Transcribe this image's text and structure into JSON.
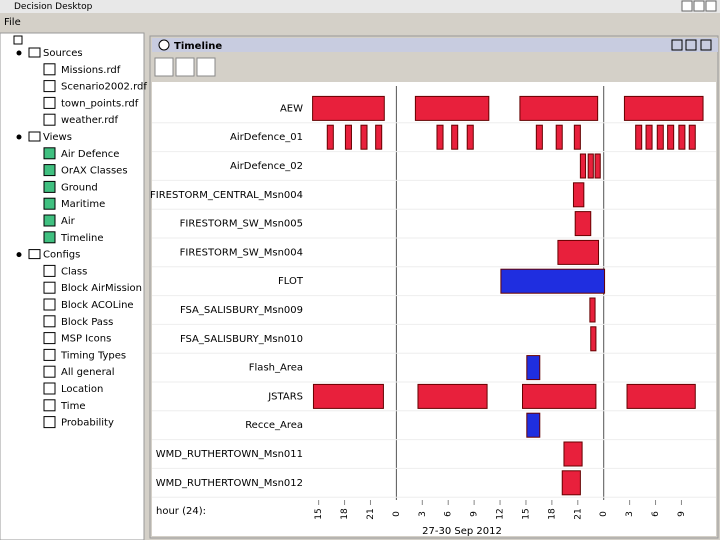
{
  "window": {
    "title": "Decision Desktop"
  },
  "menu": [
    "File"
  ],
  "tree": [
    {
      "label": "Sources",
      "children": [
        "Missions.rdf",
        "Scenario2002.rdf",
        "town_points.rdf",
        "weather.rdf"
      ]
    },
    {
      "label": "Views",
      "children": [
        "Air Defence",
        "OrAX Classes",
        "Ground",
        "Maritime",
        "Air",
        "Timeline"
      ]
    },
    {
      "label": "Configs",
      "children": [
        "Class",
        "Block AirMission",
        "Block ACOLine",
        "Block Pass",
        "MSP Icons",
        "Timing Types",
        "All general",
        "Location",
        "Time",
        "Probability"
      ]
    }
  ],
  "panel": {
    "title": "Timeline"
  },
  "chart_data": {
    "type": "timeline",
    "xlabel": "hour (24):",
    "date_label": "27-30 Sep 2012",
    "xlim": [
      14,
      61
    ],
    "xticks": [
      {
        "value": 15,
        "label": "15"
      },
      {
        "value": 18,
        "label": "18"
      },
      {
        "value": 21,
        "label": "21"
      },
      {
        "value": 24,
        "label": "0"
      },
      {
        "value": 27,
        "label": "3"
      },
      {
        "value": 30,
        "label": "6"
      },
      {
        "value": 33,
        "label": "9"
      },
      {
        "value": 36,
        "label": "12"
      },
      {
        "value": 39,
        "label": "15"
      },
      {
        "value": 42,
        "label": "18"
      },
      {
        "value": 45,
        "label": "21"
      },
      {
        "value": 48,
        "label": "0"
      },
      {
        "value": 51,
        "label": "3"
      },
      {
        "value": 54,
        "label": "6"
      },
      {
        "value": 57,
        "label": "9"
      }
    ],
    "series": [
      {
        "name": "AEW",
        "color": "#e8203c",
        "values": [
          [
            14.3,
            22.6
          ],
          [
            26.2,
            34.7
          ],
          [
            38.3,
            47.3
          ],
          [
            50.4,
            59.5
          ]
        ]
      },
      {
        "name": "AirDefence_01",
        "color": "#e8203c",
        "values": [
          [
            16.0,
            16.7
          ],
          [
            18.1,
            18.8
          ],
          [
            19.9,
            20.6
          ],
          [
            21.6,
            22.3
          ],
          [
            28.7,
            29.4
          ],
          [
            30.4,
            31.1
          ],
          [
            32.2,
            32.9
          ],
          [
            40.2,
            40.9
          ],
          [
            42.5,
            43.2
          ],
          [
            44.6,
            45.3
          ],
          [
            51.7,
            52.4
          ],
          [
            52.9,
            53.6
          ],
          [
            54.2,
            54.9
          ],
          [
            55.4,
            56.1
          ],
          [
            56.7,
            57.4
          ],
          [
            57.9,
            58.6
          ]
        ]
      },
      {
        "name": "AirDefence_02",
        "color": "#e8203c",
        "values": [
          [
            45.3,
            45.9
          ],
          [
            46.2,
            46.8
          ],
          [
            47.0,
            47.6
          ]
        ]
      },
      {
        "name": "FIRESTORM_CENTRAL_Msn004",
        "color": "#e8203c",
        "values": [
          [
            44.5,
            45.7
          ]
        ]
      },
      {
        "name": "FIRESTORM_SW_Msn005",
        "color": "#e8203c",
        "values": [
          [
            44.7,
            46.5
          ]
        ]
      },
      {
        "name": "FIRESTORM_SW_Msn004",
        "color": "#e8203c",
        "values": [
          [
            42.7,
            47.4
          ]
        ]
      },
      {
        "name": "FLOT",
        "color": "#1f2ee0",
        "values": [
          [
            36.1,
            48.1
          ]
        ]
      },
      {
        "name": "FSA_SALISBURY_Msn009",
        "color": "#e8203c",
        "values": [
          [
            46.4,
            47.0
          ]
        ]
      },
      {
        "name": "FSA_SALISBURY_Msn010",
        "color": "#e8203c",
        "values": [
          [
            46.5,
            47.1
          ]
        ]
      },
      {
        "name": "Flash_Area",
        "color": "#1f2ee0",
        "values": [
          [
            39.1,
            40.6
          ]
        ]
      },
      {
        "name": "JSTARS",
        "color": "#e8203c",
        "values": [
          [
            14.4,
            22.5
          ],
          [
            26.5,
            34.5
          ],
          [
            38.6,
            47.1
          ],
          [
            50.7,
            58.6
          ]
        ]
      },
      {
        "name": "Recce_Area",
        "color": "#1f2ee0",
        "values": [
          [
            39.1,
            40.6
          ]
        ]
      },
      {
        "name": "WMD_RUTHERTOWN_Msn011",
        "color": "#e8203c",
        "values": [
          [
            43.4,
            45.5
          ]
        ]
      },
      {
        "name": "WMD_RUTHERTOWN_Msn012",
        "color": "#e8203c",
        "values": [
          [
            43.2,
            45.3
          ]
        ]
      }
    ]
  }
}
